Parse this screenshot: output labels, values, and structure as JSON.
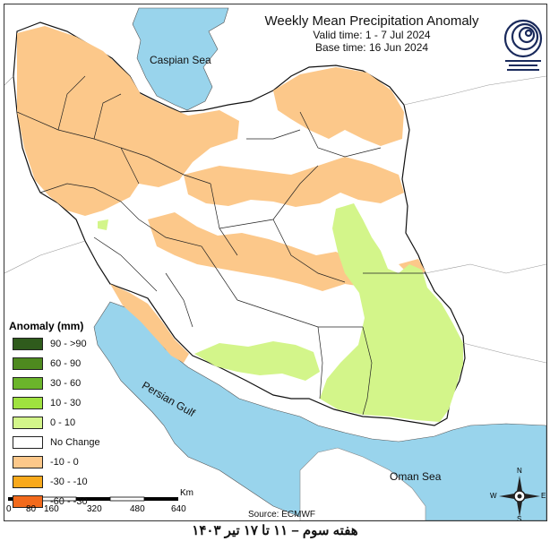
{
  "header": {
    "title": "Weekly Mean Precipitation Anomaly",
    "valid_time": "Valid time: 1 - 7 Jul 2024",
    "base_time": "Base time: 16 Jun 2024"
  },
  "labels": {
    "caspian": "Caspian Sea",
    "persian_gulf": "Persian Gulf",
    "oman_sea": "Oman Sea"
  },
  "legend": {
    "title": "Anomaly (mm)",
    "items": [
      {
        "label": "90 - >90",
        "color": "#2f5b1c"
      },
      {
        "label": "60 - 90",
        "color": "#4e8a1f"
      },
      {
        "label": "30 - 60",
        "color": "#6bb52b"
      },
      {
        "label": "10 - 30",
        "color": "#9fe23f"
      },
      {
        "label": "0 - 10",
        "color": "#d3f58a"
      },
      {
        "label": "No Change",
        "color": "#ffffff"
      },
      {
        "label": "-10 - 0",
        "color": "#fcc88a"
      },
      {
        "label": "-30 - -10",
        "color": "#f8a91c"
      },
      {
        "label": "-60 - -30",
        "color": "#f26a1c"
      }
    ]
  },
  "scale": {
    "unit": "Km",
    "ticks": [
      "0",
      "80",
      "160",
      "320",
      "480",
      "640"
    ]
  },
  "source": "Source: ECMWF",
  "compass": {
    "n": "N",
    "s": "S",
    "e": "E",
    "w": "W"
  },
  "footer": "هفته سوم – ۱۱ تا ۱۷ تیر ۱۴۰۳",
  "colors": {
    "sea": "#99d4ec",
    "land_out": "#ffffff",
    "negative": "#fcc88a",
    "positive": "#d3f58a"
  }
}
